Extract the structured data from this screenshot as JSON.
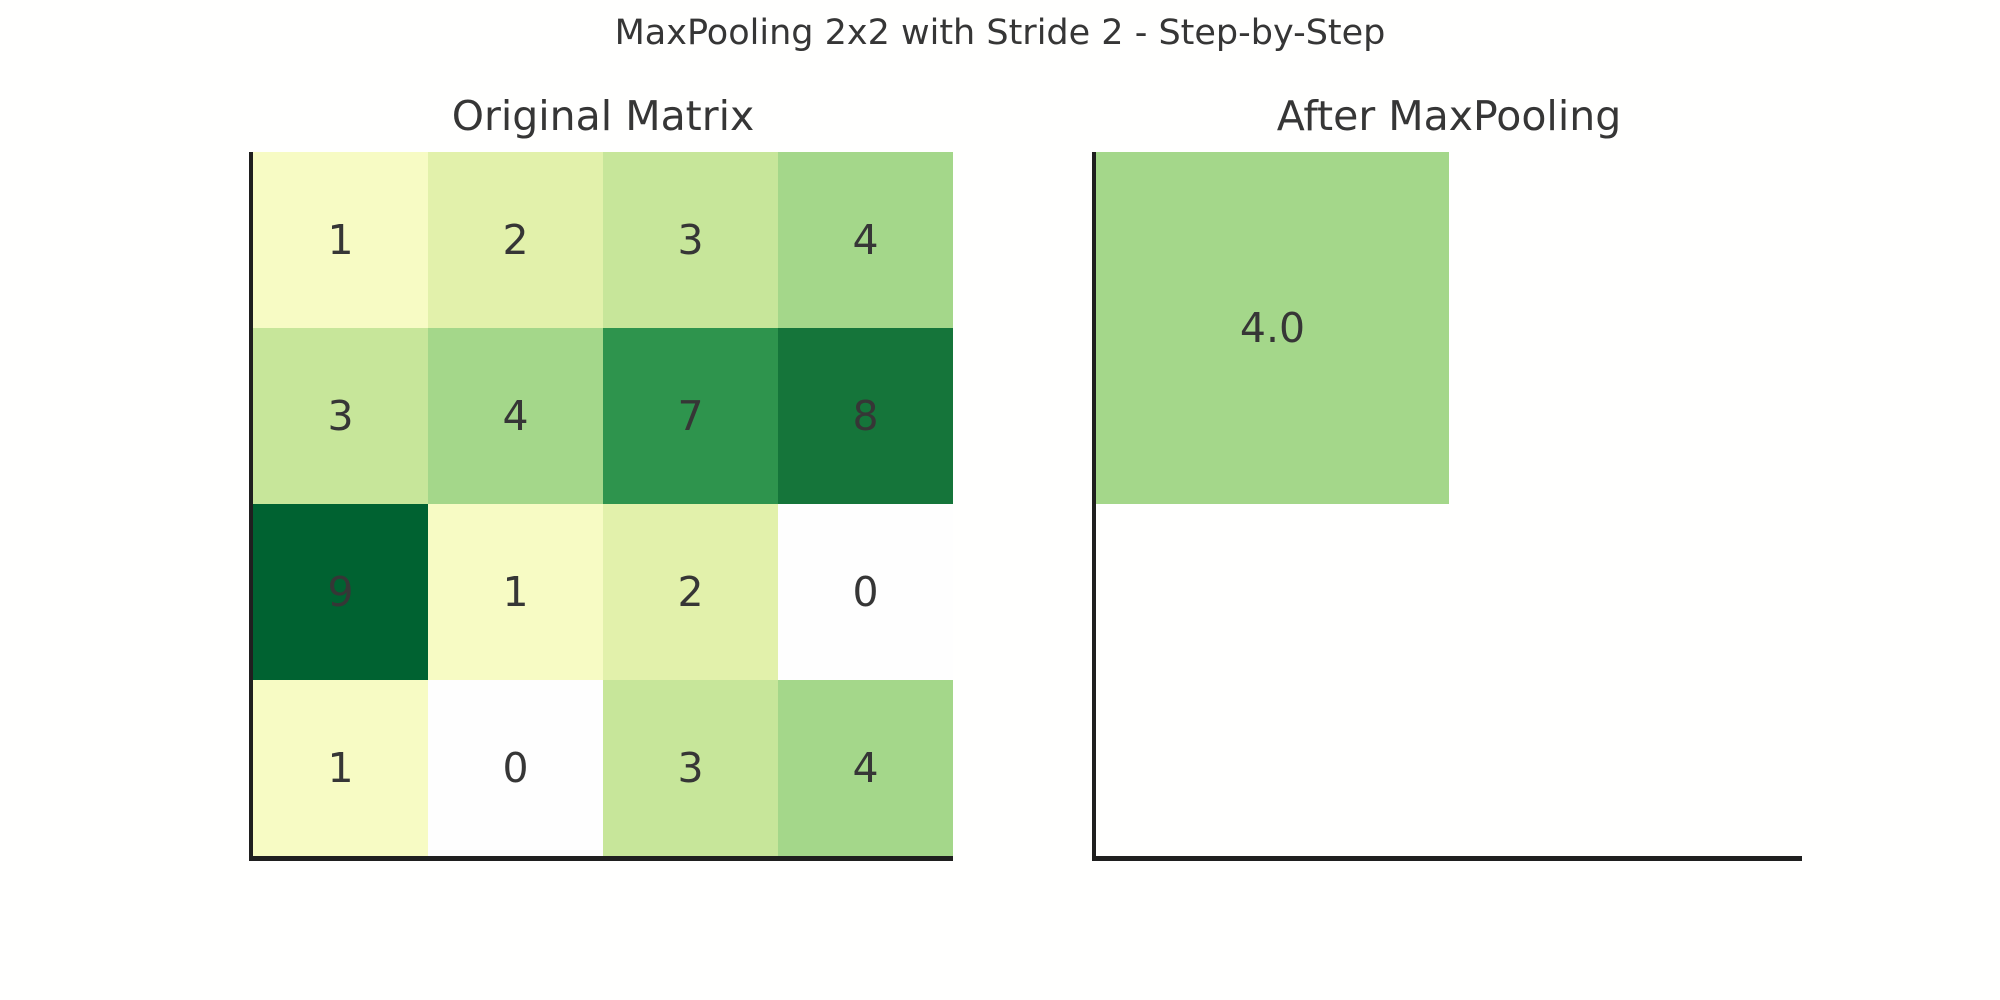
{
  "figure": {
    "title": "MaxPooling 2x2 with Stride 2 - Step-by-Step"
  },
  "colors": {
    "background": "#fffffe",
    "spine": "#1f1f1f",
    "text": "#363636",
    "value_palette": {
      "0": "#fefefe",
      "1": "#f7fbc4",
      "2": "#e2f1ab",
      "3": "#c7e69a",
      "4": "#a4d78a",
      "7": "#2e944d",
      "8": "#15753a",
      "9": "#006231"
    }
  },
  "left": {
    "title": "Original Matrix",
    "cells": [
      {
        "label": "1",
        "color": "#f7fbc4"
      },
      {
        "label": "2",
        "color": "#e2f1ab"
      },
      {
        "label": "3",
        "color": "#c7e69a"
      },
      {
        "label": "4",
        "color": "#a4d78a"
      },
      {
        "label": "3",
        "color": "#c7e69a"
      },
      {
        "label": "4",
        "color": "#a4d78a"
      },
      {
        "label": "7",
        "color": "#2e944d"
      },
      {
        "label": "8",
        "color": "#15753a"
      },
      {
        "label": "9",
        "color": "#006231"
      },
      {
        "label": "1",
        "color": "#f7fbc4"
      },
      {
        "label": "2",
        "color": "#e2f1ab"
      },
      {
        "label": "0",
        "color": "#fefefe"
      },
      {
        "label": "1",
        "color": "#f7fbc4"
      },
      {
        "label": "0",
        "color": "#fefefe"
      },
      {
        "label": "3",
        "color": "#c7e69a"
      },
      {
        "label": "4",
        "color": "#a4d78a"
      }
    ]
  },
  "right": {
    "title": "After MaxPooling",
    "cell": {
      "label": "4.0",
      "color": "#a4d78a"
    }
  },
  "chart_data": [
    {
      "type": "heatmap",
      "title": "Original Matrix",
      "rows": 4,
      "cols": 4,
      "matrix": [
        [
          1,
          2,
          3,
          4
        ],
        [
          3,
          4,
          7,
          8
        ],
        [
          9,
          1,
          2,
          0
        ],
        [
          1,
          0,
          3,
          4
        ]
      ],
      "value_range": [
        0,
        9
      ],
      "colormap": "yellow-green (YlGn-like, light=low, dark=high)",
      "cell_annotations": "integer value centered in each cell, dark gray text",
      "axes_style": "left and bottom spines only, no ticks, no tick labels, no gridlines",
      "legend": "none"
    },
    {
      "type": "heatmap",
      "title": "After MaxPooling",
      "rows": 2,
      "cols": 2,
      "matrix": [
        [
          4.0,
          null
        ],
        [
          null,
          null
        ]
      ],
      "filled_cells": [
        {
          "row": 0,
          "col": 0,
          "value": 4.0,
          "label": "4.0"
        }
      ],
      "note": "step-by-step state: only the first 2x2 pooling window result (max of 1,2,3,4 = 4.0) is drawn; remaining cells are blank",
      "axes_style": "left and bottom spines only, no ticks, no tick labels, no gridlines",
      "legend": "none"
    }
  ],
  "suptitle": "MaxPooling 2x2 with Stride 2 - Step-by-Step"
}
